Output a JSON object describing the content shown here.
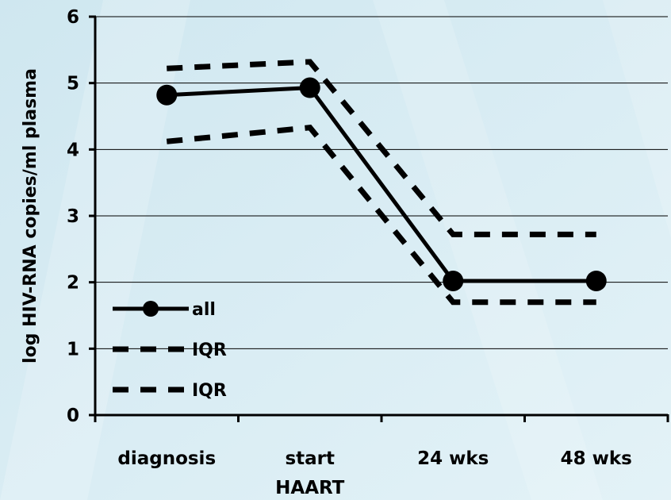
{
  "chart_data": {
    "type": "line",
    "categories": [
      "diagnosis",
      "start HAART",
      "24 wks",
      "48 wks"
    ],
    "category_label_lines": [
      [
        "diagnosis"
      ],
      [
        "start",
        "HAART"
      ],
      [
        "24 wks"
      ],
      [
        "48 wks"
      ]
    ],
    "ylabel": "log HIV-RNA copies/ml plasma",
    "ylim": [
      0,
      6
    ],
    "yticks": [
      "0",
      "1",
      "2",
      "3",
      "4",
      "5",
      "6"
    ],
    "grid": true,
    "legend_position": "bottom-left",
    "series": [
      {
        "name": "all",
        "style": "solid-markers",
        "values": [
          4.82,
          4.93,
          2.02,
          2.02
        ]
      },
      {
        "name": "IQR",
        "style": "dashed",
        "values": [
          5.22,
          5.32,
          2.72,
          2.72
        ]
      },
      {
        "name": "IQR",
        "style": "dashed",
        "values": [
          4.12,
          4.33,
          1.7,
          1.7
        ]
      }
    ],
    "colors": {
      "line": "#000000",
      "grid": "#000000",
      "background": "#d7ecf3"
    }
  }
}
